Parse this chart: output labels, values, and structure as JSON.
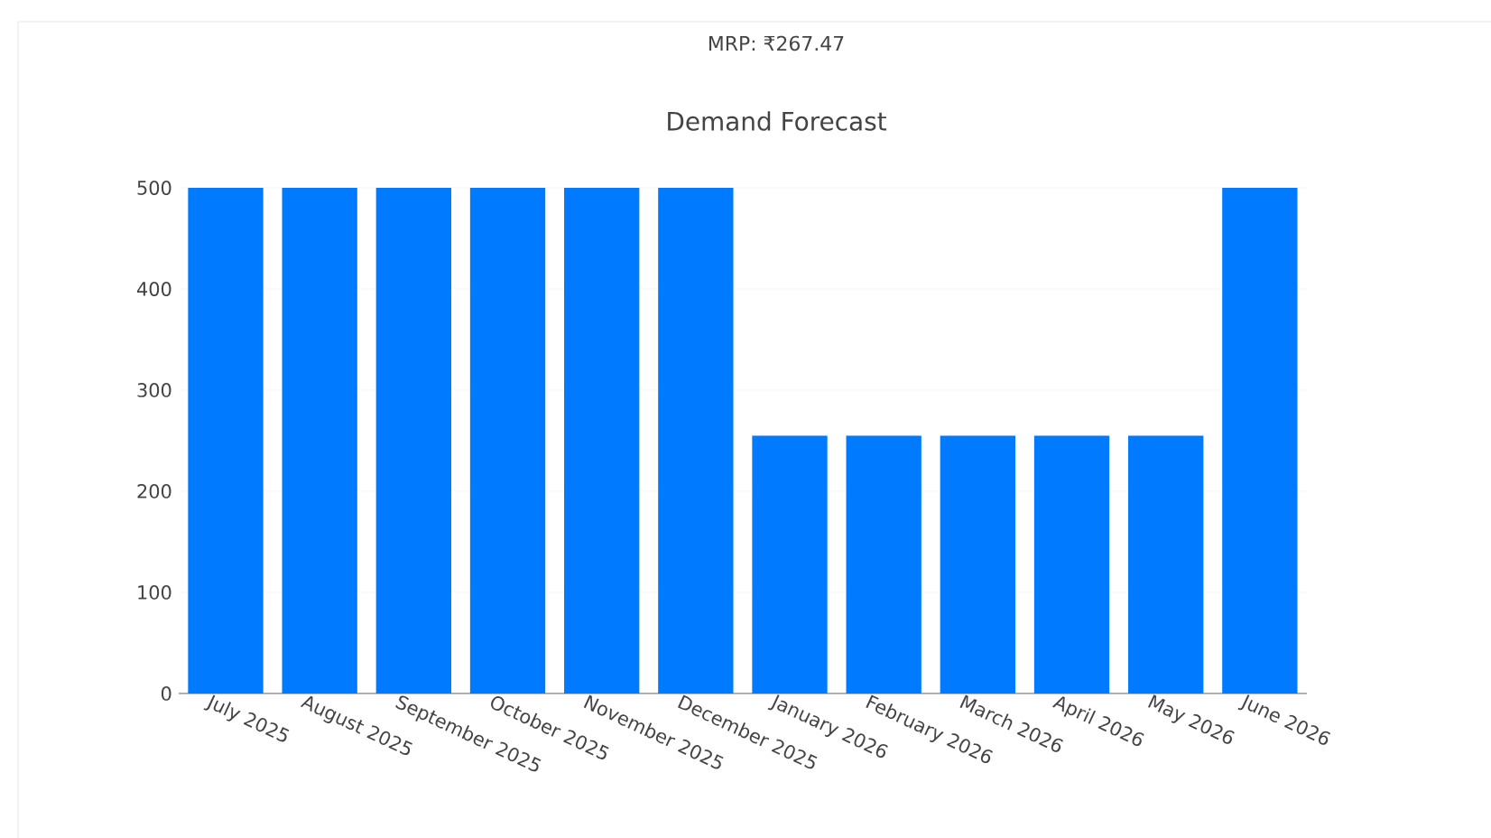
{
  "chart_data": {
    "type": "bar",
    "subtitle": "MRP: ₹267.47",
    "title": "Demand Forecast",
    "categories": [
      "July 2025",
      "August 2025",
      "September 2025",
      "October 2025",
      "November 2025",
      "December 2025",
      "January 2026",
      "February 2026",
      "March 2026",
      "April 2026",
      "May 2026",
      "June 2026"
    ],
    "values": [
      500,
      500,
      500,
      500,
      500,
      500,
      255,
      255,
      255,
      255,
      255,
      500
    ],
    "color": "#007bff",
    "ylim": [
      0,
      500
    ],
    "yticks": [
      0,
      100,
      200,
      300,
      400,
      500
    ],
    "grid": "y"
  }
}
